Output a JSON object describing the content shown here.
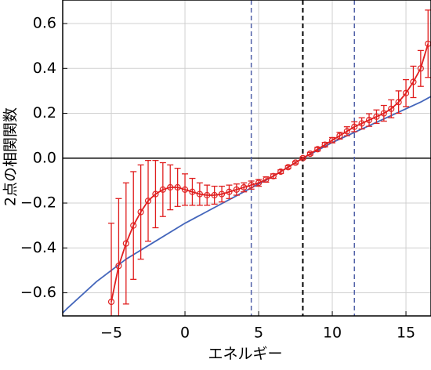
{
  "chart_data": {
    "type": "line",
    "x_label": "エネルギー",
    "y_label": "2点の相関関数",
    "xlim": [
      -8.3,
      16.7
    ],
    "ylim": [
      -0.703,
      0.705
    ],
    "xticks": [
      {
        "value": -5,
        "label": "−5"
      },
      0,
      5,
      10,
      15
    ],
    "yticks": [
      0.6,
      0.4,
      0.2,
      {
        "value": 0,
        "label": "0.0"
      },
      {
        "value": -0.2,
        "label": "−0.2"
      },
      {
        "value": -0.4,
        "label": "−0.4"
      },
      {
        "value": -0.6,
        "label": "−0.6"
      }
    ],
    "grid": true,
    "hlines": [
      {
        "value": 0,
        "color": "#000000",
        "dash": false
      }
    ],
    "vlines": [
      {
        "value": 4.5,
        "color": "#5060a8",
        "dash": true
      },
      {
        "value": 8,
        "color": "#000000",
        "dash": true
      },
      {
        "value": 11.5,
        "color": "#5060a8",
        "dash": true
      }
    ],
    "series": [
      {
        "color": "#4466bb",
        "markers": false,
        "x": [
          -8.3,
          -8,
          -6,
          -4,
          -2,
          0,
          2,
          4,
          6,
          8,
          10,
          12,
          14,
          16,
          16.7
        ],
        "values": [
          -0.69,
          -0.67,
          -0.55,
          -0.45,
          -0.37,
          -0.29,
          -0.22,
          -0.15,
          -0.08,
          0.0,
          0.07,
          0.13,
          0.19,
          0.25,
          0.275
        ]
      },
      {
        "color": "#e02020",
        "markers": true,
        "x": [
          -5,
          -4.5,
          -4,
          -3.5,
          -3,
          -2.5,
          -2,
          -1.5,
          -1,
          -0.5,
          0,
          0.5,
          1,
          1.5,
          2,
          2.5,
          3,
          3.5,
          4,
          4.5,
          5,
          5.5,
          6,
          6.5,
          7,
          7.5,
          8,
          8.5,
          9,
          9.5,
          10,
          10.5,
          11,
          11.5,
          12,
          12.5,
          13,
          13.5,
          14,
          14.5,
          15,
          15.5,
          16,
          16.5
        ],
        "values": [
          -0.64,
          -0.48,
          -0.38,
          -0.3,
          -0.24,
          -0.19,
          -0.16,
          -0.14,
          -0.13,
          -0.13,
          -0.14,
          -0.15,
          -0.16,
          -0.165,
          -0.165,
          -0.16,
          -0.15,
          -0.14,
          -0.13,
          -0.12,
          -0.11,
          -0.095,
          -0.08,
          -0.06,
          -0.04,
          -0.02,
          0.0,
          0.02,
          0.04,
          0.06,
          0.08,
          0.1,
          0.12,
          0.14,
          0.155,
          0.17,
          0.185,
          0.2,
          0.22,
          0.25,
          0.29,
          0.34,
          0.4,
          0.51
        ],
        "errors": [
          0.35,
          0.3,
          0.27,
          0.24,
          0.21,
          0.18,
          0.15,
          0.12,
          0.1,
          0.085,
          0.07,
          0.06,
          0.05,
          0.045,
          0.04,
          0.035,
          0.03,
          0.025,
          0.02,
          0.018,
          0.015,
          0.012,
          0.01,
          0.008,
          0.006,
          0.005,
          0.005,
          0.006,
          0.008,
          0.01,
          0.012,
          0.015,
          0.02,
          0.022,
          0.025,
          0.028,
          0.03,
          0.035,
          0.04,
          0.05,
          0.06,
          0.07,
          0.08,
          0.15
        ]
      }
    ]
  }
}
